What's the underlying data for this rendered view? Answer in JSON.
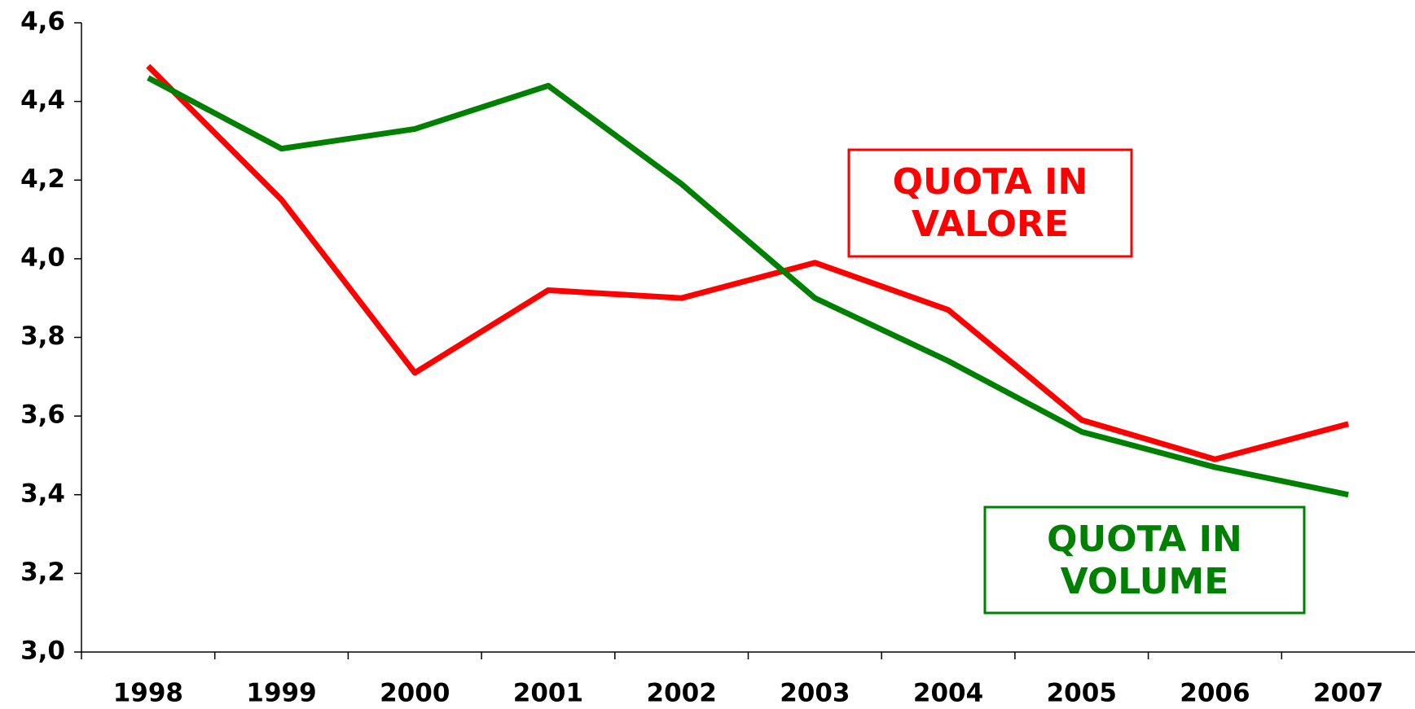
{
  "chart_data": {
    "type": "line",
    "categories": [
      "1998",
      "1999",
      "2000",
      "2001",
      "2002",
      "2003",
      "2004",
      "2005",
      "2006",
      "2007"
    ],
    "series": [
      {
        "color": "#ff0000",
        "values": [
          4.49,
          4.15,
          3.71,
          3.92,
          3.9,
          3.99,
          3.87,
          3.59,
          3.49,
          3.58
        ]
      },
      {
        "color": "#008000",
        "values": [
          4.46,
          4.28,
          4.33,
          4.44,
          4.19,
          3.9,
          3.74,
          3.56,
          3.47,
          3.4
        ]
      }
    ],
    "ylim": [
      3.0,
      4.6
    ],
    "yticks": [
      {
        "value": 3.0,
        "label": "3,0"
      },
      {
        "value": 3.2,
        "label": "3,2"
      },
      {
        "value": 3.4,
        "label": "3,4"
      },
      {
        "value": 3.6,
        "label": "3,6"
      },
      {
        "value": 3.8,
        "label": "3,8"
      },
      {
        "value": 4.0,
        "label": "4,0"
      },
      {
        "value": 4.2,
        "label": "4,2"
      },
      {
        "value": 4.4,
        "label": "4,4"
      },
      {
        "value": 4.6,
        "label": "4,6"
      }
    ],
    "annotations": [
      {
        "lines": [
          "QUOTA IN",
          "VALORE"
        ],
        "color": "#ff0000"
      },
      {
        "lines": [
          "QUOTA IN",
          "VOLUME"
        ],
        "color": "#008000"
      }
    ]
  }
}
